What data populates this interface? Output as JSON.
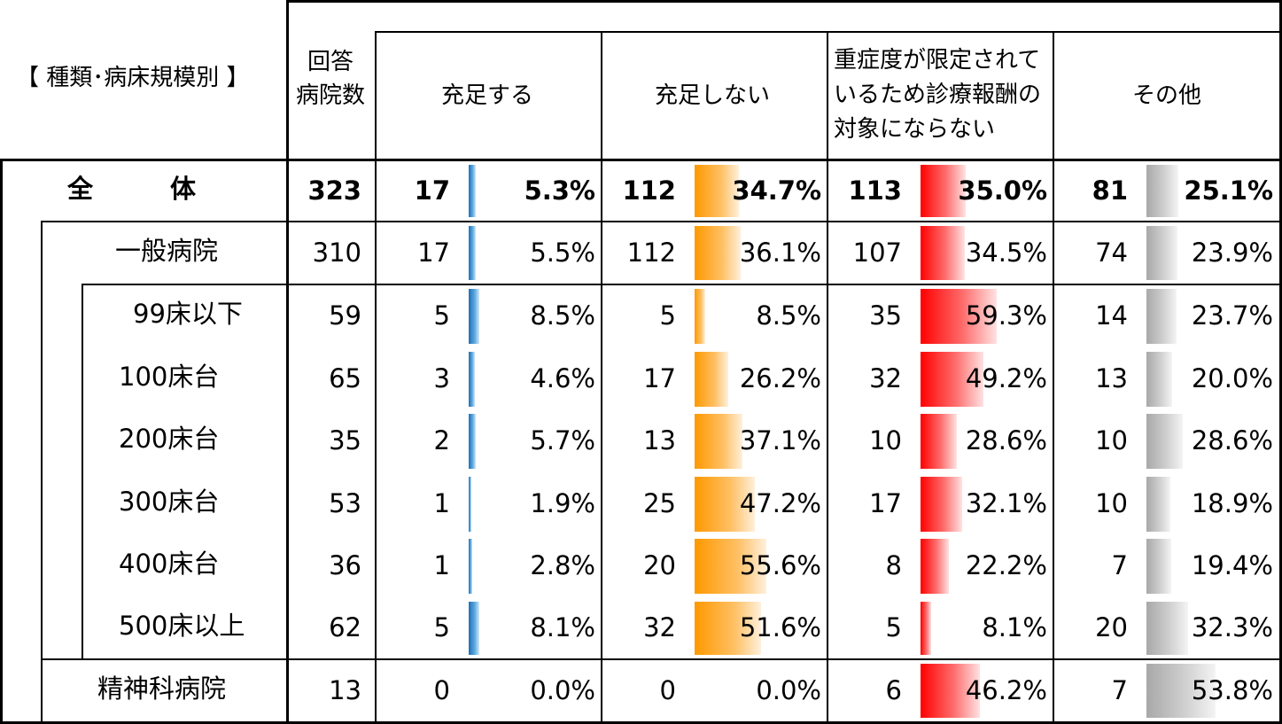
{
  "header": {
    "category": "【 種類･病床規模別 】",
    "respondents_line1": "回答",
    "respondents_line2": "病院数",
    "col_satisfy": "充足する",
    "col_not_satisfy": "充足しない",
    "col_limited_line1": "重症度が限定されて",
    "col_limited_line2": "いるため診療報酬の",
    "col_limited_line3": "対象にならない",
    "col_other": "その他"
  },
  "colors": {
    "satisfy": "#1f6fb5",
    "not_satisfy": "#ff9800",
    "limited": "#ff0000",
    "other": "#a8a8a8"
  },
  "rows": [
    {
      "label": "全　　　体",
      "total": "323",
      "c1": "17",
      "p1": "5.3%",
      "c2": "112",
      "p2": "34.7%",
      "c3": "113",
      "p3": "35.0%",
      "c4": "81",
      "p4": "25.1%",
      "bold": true
    },
    {
      "label": "一般病院",
      "total": "310",
      "c1": "17",
      "p1": "5.5%",
      "c2": "112",
      "p2": "36.1%",
      "c3": "107",
      "p3": "34.5%",
      "c4": "74",
      "p4": "23.9%"
    },
    {
      "label": "99床以下",
      "total": "59",
      "c1": "5",
      "p1": "8.5%",
      "c2": "5",
      "p2": "8.5%",
      "c3": "35",
      "p3": "59.3%",
      "c4": "14",
      "p4": "23.7%"
    },
    {
      "label": "100床台",
      "total": "65",
      "c1": "3",
      "p1": "4.6%",
      "c2": "17",
      "p2": "26.2%",
      "c3": "32",
      "p3": "49.2%",
      "c4": "13",
      "p4": "20.0%"
    },
    {
      "label": "200床台",
      "total": "35",
      "c1": "2",
      "p1": "5.7%",
      "c2": "13",
      "p2": "37.1%",
      "c3": "10",
      "p3": "28.6%",
      "c4": "10",
      "p4": "28.6%"
    },
    {
      "label": "300床台",
      "total": "53",
      "c1": "1",
      "p1": "1.9%",
      "c2": "25",
      "p2": "47.2%",
      "c3": "17",
      "p3": "32.1%",
      "c4": "10",
      "p4": "18.9%"
    },
    {
      "label": "400床台",
      "total": "36",
      "c1": "1",
      "p1": "2.8%",
      "c2": "20",
      "p2": "55.6%",
      "c3": "8",
      "p3": "22.2%",
      "c4": "7",
      "p4": "19.4%"
    },
    {
      "label": "500床以上",
      "total": "62",
      "c1": "5",
      "p1": "8.1%",
      "c2": "32",
      "p2": "51.6%",
      "c3": "5",
      "p3": "8.1%",
      "c4": "20",
      "p4": "32.3%"
    },
    {
      "label": "精神科病院",
      "total": "13",
      "c1": "0",
      "p1": "0.0%",
      "c2": "0",
      "p2": "0.0%",
      "c3": "6",
      "p3": "46.2%",
      "c4": "7",
      "p4": "53.8%"
    }
  ]
}
